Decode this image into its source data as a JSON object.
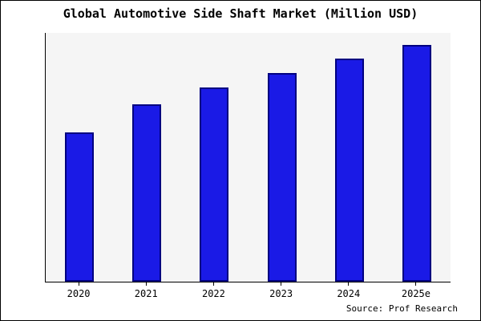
{
  "title": "Global Automotive Side Shaft Market (Million USD)",
  "source": "Source: Prof Research",
  "chart_data": {
    "type": "bar",
    "title": "Global Automotive Side Shaft Market (Million USD)",
    "categories": [
      "2020",
      "2021",
      "2022",
      "2023",
      "2024",
      "2025e"
    ],
    "values": [
      63,
      75,
      82,
      88,
      94,
      100
    ],
    "xlabel": "",
    "ylabel": "",
    "ylim": [
      0,
      105
    ],
    "grid": false,
    "legend": "none",
    "y_axis_labels_visible": false,
    "bar_color": "#1a1ae6",
    "bar_border_color": "#000080",
    "plot_bg": "#f5f5f5",
    "frame_border_color": "#000000",
    "source_label": "Source: Prof Research"
  }
}
